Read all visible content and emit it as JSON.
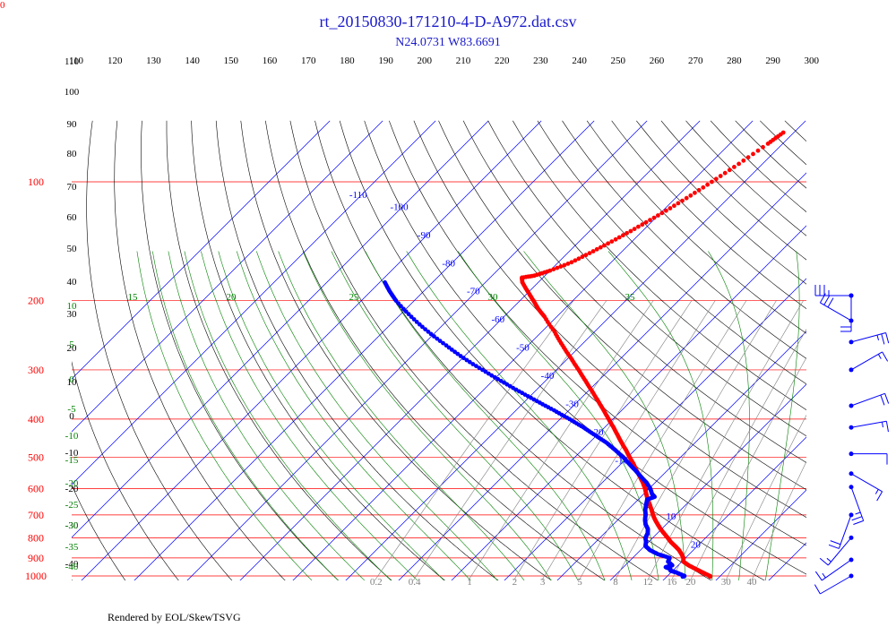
{
  "title": "rt_20150830-171210-4-D-A972.dat.csv",
  "subtitle": "N24.0731 W83.6691",
  "footer": "Rendered by EOL/SkewTSVG",
  "corner_label": "0",
  "colors": {
    "title": "#1a1acc",
    "isotherm": "#0000ff",
    "isobar": "#ff0000",
    "dry_adiabat": "#000000",
    "moist_adiabat": "#008000",
    "mixing_ratio": "#808080",
    "temperature": "#ff0000",
    "dewpoint": "#0000ff",
    "wind": "#0000ff"
  },
  "chart_data": {
    "type": "skew-t",
    "pressure_axis": {
      "label_positions_hpa": [
        100,
        200,
        300,
        400,
        500,
        600,
        700,
        800,
        900,
        1000
      ],
      "labels": [
        "100",
        "200",
        "300",
        "400",
        "500",
        "600",
        "700",
        "800",
        "900",
        "1000"
      ],
      "range_hpa": [
        1000,
        100
      ],
      "scale": "log"
    },
    "potential_temp_labels": [
      "110",
      "120",
      "130",
      "140",
      "150",
      "160",
      "170",
      "180",
      "190",
      "200",
      "210",
      "220",
      "230",
      "240",
      "250",
      "260",
      "270",
      "280",
      "290",
      "300"
    ],
    "isotherm_labels": [
      "-110",
      "-100",
      "-90",
      "-80",
      "-70",
      "-60",
      "-50",
      "-40",
      "-30",
      "-20",
      "-10",
      "0",
      "10",
      "20",
      "30"
    ],
    "isotherm_temps_c": [
      -110,
      -100,
      -90,
      -80,
      -70,
      -60,
      -50,
      -40,
      -30,
      -20,
      -10,
      0,
      10,
      20,
      30
    ],
    "moist_adiabat_labels_top": [
      "15",
      "20",
      "25",
      "30",
      "35"
    ],
    "moist_adiabat_labels_left": [
      "10",
      "5",
      "0",
      "-5",
      "-10",
      "-15",
      "-20",
      "-25",
      "-30",
      "-35",
      "-40"
    ],
    "dry_adiabat_labels_left": [
      "110",
      "100",
      "90",
      "80",
      "70",
      "60",
      "50",
      "40",
      "30",
      "20",
      "10",
      "0",
      "-10",
      "-20",
      "-30",
      "-40"
    ],
    "mixing_ratio_labels": [
      "0.2",
      "0.4",
      "1",
      "2",
      "3",
      "5",
      "8",
      "12",
      "16",
      "20",
      "30",
      "40"
    ],
    "mixing_ratio_values": [
      0.2,
      0.4,
      1,
      2,
      3,
      5,
      8,
      12,
      16,
      20,
      30,
      40
    ],
    "temperature": {
      "name": "",
      "points": [
        [
          1004,
          28.2
        ],
        [
          1000,
          28.0
        ],
        [
          980,
          26.0
        ],
        [
          960,
          24.0
        ],
        [
          940,
          22.0
        ],
        [
          920,
          20.3
        ],
        [
          900,
          19.6
        ],
        [
          880,
          18.5
        ],
        [
          860,
          17.3
        ],
        [
          840,
          15.8
        ],
        [
          820,
          14.2
        ],
        [
          800,
          12.8
        ],
        [
          780,
          11.3
        ],
        [
          760,
          9.8
        ],
        [
          740,
          8.4
        ],
        [
          720,
          7.0
        ],
        [
          700,
          5.7
        ],
        [
          680,
          4.5
        ],
        [
          660,
          3.2
        ],
        [
          640,
          1.8
        ],
        [
          620,
          0.5
        ],
        [
          600,
          -0.8
        ],
        [
          580,
          -2.3
        ],
        [
          560,
          -4.0
        ],
        [
          540,
          -5.8
        ],
        [
          520,
          -7.6
        ],
        [
          500,
          -9.6
        ],
        [
          480,
          -11.6
        ],
        [
          460,
          -13.8
        ],
        [
          440,
          -16.0
        ],
        [
          420,
          -18.3
        ],
        [
          400,
          -20.8
        ],
        [
          380,
          -23.4
        ],
        [
          360,
          -26.2
        ],
        [
          340,
          -29.2
        ],
        [
          320,
          -32.4
        ],
        [
          300,
          -35.8
        ],
        [
          280,
          -39.5
        ],
        [
          260,
          -43.5
        ],
        [
          240,
          -47.6
        ],
        [
          220,
          -52.3
        ],
        [
          210,
          -55.0
        ],
        [
          200,
          -57.5
        ],
        [
          190,
          -60.2
        ],
        [
          180,
          -63.0
        ],
        [
          175,
          -64.0
        ],
        [
          173,
          -62.0
        ],
        [
          168,
          -60.0
        ],
        [
          160,
          -57.5
        ],
        [
          150,
          -55.5
        ],
        [
          140,
          -53.5
        ],
        [
          130,
          -51.6
        ],
        [
          120,
          -49.7
        ],
        [
          110,
          -47.9
        ],
        [
          100,
          -46.2
        ],
        [
          90,
          -44.5
        ],
        [
          80,
          -42.8
        ],
        [
          75,
          -42.0
        ]
      ]
    },
    "dewpoint": {
      "name": "",
      "points": [
        [
          1004,
          23.0
        ],
        [
          1000,
          23.2
        ],
        [
          980,
          21.0
        ],
        [
          970,
          19.6
        ],
        [
          960,
          19.2
        ],
        [
          950,
          18.0
        ],
        [
          940,
          18.9
        ],
        [
          920,
          17.4
        ],
        [
          900,
          17.0
        ],
        [
          880,
          14.0
        ],
        [
          860,
          11.8
        ],
        [
          840,
          10.2
        ],
        [
          820,
          9.5
        ],
        [
          800,
          8.6
        ],
        [
          780,
          8.2
        ],
        [
          760,
          7.4
        ],
        [
          740,
          6.1
        ],
        [
          720,
          5.1
        ],
        [
          700,
          4.3
        ],
        [
          680,
          3.3
        ],
        [
          660,
          2.5
        ],
        [
          640,
          1.7
        ],
        [
          630,
          2.6
        ],
        [
          620,
          1.6
        ],
        [
          600,
          0.2
        ],
        [
          580,
          -1.6
        ],
        [
          560,
          -3.8
        ],
        [
          540,
          -6.0
        ],
        [
          520,
          -8.4
        ],
        [
          500,
          -10.8
        ],
        [
          480,
          -13.6
        ],
        [
          460,
          -16.6
        ],
        [
          440,
          -20.2
        ],
        [
          420,
          -24.0
        ],
        [
          400,
          -28.2
        ],
        [
          380,
          -32.8
        ],
        [
          360,
          -37.8
        ],
        [
          340,
          -43.0
        ],
        [
          320,
          -48.4
        ],
        [
          300,
          -54.0
        ],
        [
          280,
          -59.8
        ],
        [
          260,
          -65.5
        ],
        [
          240,
          -71.5
        ],
        [
          220,
          -77.5
        ],
        [
          200,
          -83.5
        ],
        [
          190,
          -86.3
        ],
        [
          180,
          -89.0
        ]
      ]
    },
    "winds": {
      "pressures_hpa": [
        1000,
        910,
        800,
        700,
        595,
        550,
        490,
        420,
        370,
        300,
        255,
        225,
        185,
        160
      ],
      "speeds_kt": [
        10,
        15,
        15,
        20,
        25,
        15,
        10,
        15,
        20,
        15,
        25,
        30,
        35,
        20
      ],
      "directions_deg": [
        240,
        235,
        220,
        200,
        160,
        120,
        90,
        80,
        70,
        60,
        75,
        300,
        270,
        180
      ]
    }
  }
}
